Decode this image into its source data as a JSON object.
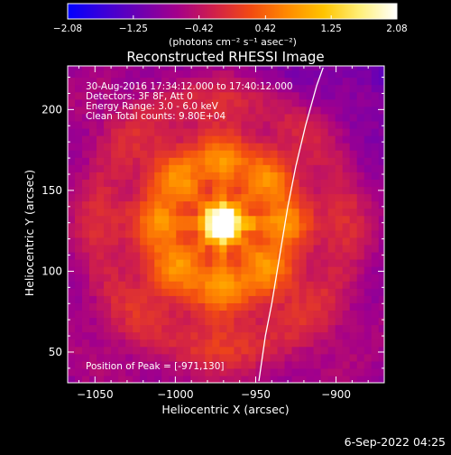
{
  "chart_data": {
    "type": "heatmap",
    "title": "Reconstructed RHESSI Image",
    "xlabel": "Heliocentric X (arcsec)",
    "ylabel": "Heliocentric Y (arcsec)",
    "xlim": [
      -1067,
      -870
    ],
    "ylim": [
      31,
      227
    ],
    "x_ticks": [
      -1050,
      -1000,
      -950,
      -900
    ],
    "x_tick_labels": [
      "−1050",
      "−1000",
      "−950",
      "−900"
    ],
    "y_ticks": [
      50,
      100,
      150,
      200
    ],
    "y_tick_labels": [
      "50",
      "100",
      "150",
      "200"
    ],
    "peak": [
      -971,
      130
    ],
    "colorbar": {
      "range": [
        -2.08,
        2.08
      ],
      "ticks": [
        -2.08,
        -1.25,
        -0.42,
        0.42,
        1.25,
        2.08
      ],
      "tick_labels": [
        "−2.08",
        "−1.25",
        "−0.42",
        "0.42",
        "1.25",
        "2.08"
      ],
      "label": "(photons cm⁻² s⁻¹ asec⁻²)",
      "colormap": [
        "#0000ff",
        "#3c00d8",
        "#6f00b0",
        "#a4008a",
        "#d01f4a",
        "#f24a12",
        "#ff8a00",
        "#ffc400",
        "#fff07a",
        "#ffffff"
      ]
    },
    "annotations": {
      "time_range": "30-Aug-2016 17:34:12.000 to 17:40:12.000",
      "detectors": "Detectors: 3F 8F, Att 0",
      "energy": "Energy Range: 3.0 - 6.0 keV",
      "clean": "Clean    Total counts: 9.80E+04",
      "peak_text": "Position of Peak = [-971,130]"
    },
    "limb": [
      [
        -948,
        32
      ],
      [
        -944,
        60
      ],
      [
        -940,
        80
      ],
      [
        -935,
        110
      ],
      [
        -930,
        140
      ],
      [
        -925,
        165
      ],
      [
        -919,
        190
      ],
      [
        -912,
        215
      ],
      [
        -908,
        226
      ]
    ]
  },
  "footer": {
    "date": "6-Sep-2022 04:25"
  }
}
